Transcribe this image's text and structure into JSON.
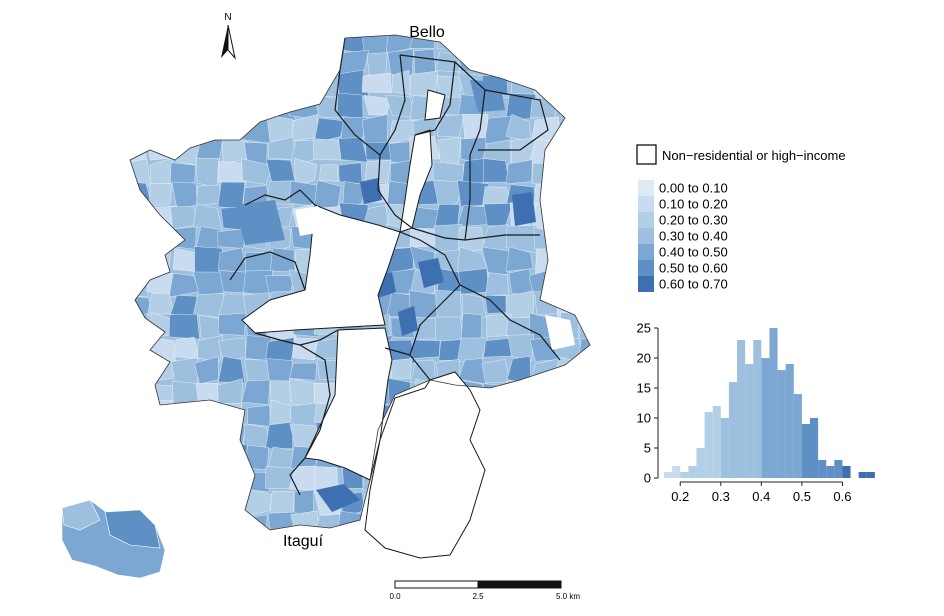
{
  "map": {
    "north_label": "N",
    "places": {
      "north": "Bello",
      "south": "Itaguí"
    },
    "scale_bar": {
      "ticks": [
        "0.0",
        "2.5",
        "5.0 km"
      ]
    }
  },
  "legend": {
    "outline_label": "Non−residential or high−income",
    "classes": [
      {
        "label": "0.00 to 0.10",
        "color": "#deebf7"
      },
      {
        "label": "0.10 to 0.20",
        "color": "#c9dbee"
      },
      {
        "label": "0.20 to 0.30",
        "color": "#b3cfe6"
      },
      {
        "label": "0.30 to 0.40",
        "color": "#9dc0df"
      },
      {
        "label": "0.40 to 0.50",
        "color": "#7ba7d2"
      },
      {
        "label": "0.50 to 0.60",
        "color": "#5e8fc5"
      },
      {
        "label": "0.60 to 0.70",
        "color": "#3e6fb0"
      }
    ]
  },
  "chart_data": {
    "type": "bar",
    "title": "",
    "xlabel": "",
    "ylabel": "",
    "x_ticks": [
      "0.2",
      "0.3",
      "0.4",
      "0.5",
      "0.6"
    ],
    "y_ticks": [
      "0",
      "5",
      "10",
      "15",
      "20",
      "25"
    ],
    "xlim": [
      0.155,
      0.7
    ],
    "ylim": [
      0,
      26
    ],
    "bin_width": 0.02,
    "bins": [
      {
        "x0": 0.16,
        "count": 1
      },
      {
        "x0": 0.18,
        "count": 2
      },
      {
        "x0": 0.2,
        "count": 1
      },
      {
        "x0": 0.22,
        "count": 2
      },
      {
        "x0": 0.24,
        "count": 5
      },
      {
        "x0": 0.26,
        "count": 11
      },
      {
        "x0": 0.28,
        "count": 12
      },
      {
        "x0": 0.3,
        "count": 10
      },
      {
        "x0": 0.32,
        "count": 16
      },
      {
        "x0": 0.34,
        "count": 23
      },
      {
        "x0": 0.36,
        "count": 19
      },
      {
        "x0": 0.38,
        "count": 23
      },
      {
        "x0": 0.4,
        "count": 20
      },
      {
        "x0": 0.42,
        "count": 25
      },
      {
        "x0": 0.44,
        "count": 18
      },
      {
        "x0": 0.46,
        "count": 19
      },
      {
        "x0": 0.48,
        "count": 14
      },
      {
        "x0": 0.5,
        "count": 9
      },
      {
        "x0": 0.52,
        "count": 10
      },
      {
        "x0": 0.54,
        "count": 3
      },
      {
        "x0": 0.56,
        "count": 2
      },
      {
        "x0": 0.58,
        "count": 3
      },
      {
        "x0": 0.6,
        "count": 2
      },
      {
        "x0": 0.62,
        "count": 0
      },
      {
        "x0": 0.64,
        "count": 1
      },
      {
        "x0": 0.66,
        "count": 1
      }
    ]
  }
}
